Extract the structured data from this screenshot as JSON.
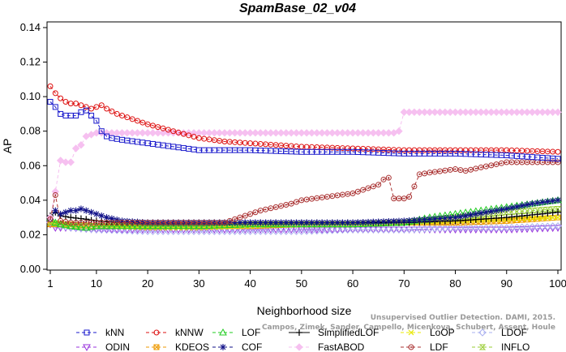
{
  "chart_data": {
    "type": "line",
    "title": "SpamBase_02_v04",
    "xlabel": "Neighborhood size",
    "ylabel": "AP",
    "xlim": [
      1,
      100
    ],
    "ylim": [
      0.0,
      0.14
    ],
    "xticks": [
      1,
      10,
      20,
      30,
      40,
      50,
      60,
      70,
      80,
      90,
      100
    ],
    "yticks": [
      0.0,
      0.02,
      0.04,
      0.06,
      0.08,
      0.1,
      0.12,
      0.14
    ],
    "ytick_labels": [
      "0.00",
      "0.02",
      "0.04",
      "0.06",
      "0.08",
      "0.10",
      "0.12",
      "0.14"
    ],
    "legend_position": "bottom",
    "credit": "Campos, Zimek, Sander, Campello, Micenkova, Schubert, Assent, Houle: Unsupervised Outlier Detection. DAMI, 2015.",
    "credit_visible": "Unsupervised Outlier Detection. DAMI, 2015.",
    "credit_line2": "Campos, Zimek, Sander, Campello, Micenkova, Schubert, Assent, Houle",
    "series": [
      {
        "name": "kNN",
        "color": "#1a1acc",
        "marker": "square",
        "dash": "4,3",
        "values": [
          [
            1,
            0.097
          ],
          [
            2,
            0.094
          ],
          [
            3,
            0.09
          ],
          [
            4,
            0.089
          ],
          [
            5,
            0.089
          ],
          [
            6,
            0.089
          ],
          [
            7,
            0.091
          ],
          [
            8,
            0.092
          ],
          [
            9,
            0.089
          ],
          [
            10,
            0.086
          ],
          [
            11,
            0.08
          ],
          [
            12,
            0.077
          ],
          [
            13,
            0.076
          ],
          [
            15,
            0.075
          ],
          [
            20,
            0.073
          ],
          [
            25,
            0.071
          ],
          [
            30,
            0.069
          ],
          [
            40,
            0.069
          ],
          [
            50,
            0.068
          ],
          [
            60,
            0.068
          ],
          [
            70,
            0.067
          ],
          [
            80,
            0.067
          ],
          [
            90,
            0.066
          ],
          [
            100,
            0.064
          ]
        ]
      },
      {
        "name": "kNNW",
        "color": "#dd1111",
        "marker": "circle",
        "dash": "4,3",
        "values": [
          [
            1,
            0.106
          ],
          [
            2,
            0.102
          ],
          [
            3,
            0.099
          ],
          [
            4,
            0.097
          ],
          [
            5,
            0.096
          ],
          [
            6,
            0.096
          ],
          [
            7,
            0.095
          ],
          [
            8,
            0.094
          ],
          [
            9,
            0.093
          ],
          [
            10,
            0.094
          ],
          [
            11,
            0.095
          ],
          [
            12,
            0.093
          ],
          [
            14,
            0.09
          ],
          [
            16,
            0.088
          ],
          [
            18,
            0.086
          ],
          [
            20,
            0.084
          ],
          [
            25,
            0.08
          ],
          [
            30,
            0.076
          ],
          [
            35,
            0.074
          ],
          [
            40,
            0.073
          ],
          [
            50,
            0.071
          ],
          [
            60,
            0.07
          ],
          [
            70,
            0.069
          ],
          [
            80,
            0.069
          ],
          [
            90,
            0.069
          ],
          [
            100,
            0.068
          ]
        ]
      },
      {
        "name": "LOF",
        "color": "#22cc22",
        "marker": "triangle",
        "dash": "4,3",
        "values": [
          [
            1,
            0.03
          ],
          [
            2,
            0.027
          ],
          [
            3,
            0.026
          ],
          [
            5,
            0.025
          ],
          [
            8,
            0.024
          ],
          [
            10,
            0.025
          ],
          [
            20,
            0.025
          ],
          [
            30,
            0.025
          ],
          [
            40,
            0.026
          ],
          [
            50,
            0.026
          ],
          [
            60,
            0.026
          ],
          [
            70,
            0.027
          ],
          [
            75,
            0.03
          ],
          [
            80,
            0.032
          ],
          [
            85,
            0.034
          ],
          [
            90,
            0.036
          ],
          [
            95,
            0.038
          ],
          [
            100,
            0.04
          ]
        ]
      },
      {
        "name": "SimplifiedLOF",
        "color": "#000000",
        "marker": "plus",
        "dash": "",
        "values": [
          [
            1,
            0.031
          ],
          [
            2,
            0.033
          ],
          [
            3,
            0.031
          ],
          [
            5,
            0.03
          ],
          [
            8,
            0.029
          ],
          [
            10,
            0.028
          ],
          [
            15,
            0.027
          ],
          [
            20,
            0.027
          ],
          [
            30,
            0.027
          ],
          [
            40,
            0.027
          ],
          [
            50,
            0.027
          ],
          [
            60,
            0.027
          ],
          [
            70,
            0.027
          ],
          [
            80,
            0.028
          ],
          [
            90,
            0.03
          ],
          [
            100,
            0.033
          ]
        ]
      },
      {
        "name": "LoOP",
        "color": "#e8e800",
        "marker": "x",
        "dash": "4,3",
        "values": [
          [
            1,
            0.027
          ],
          [
            3,
            0.027
          ],
          [
            5,
            0.026
          ],
          [
            10,
            0.025
          ],
          [
            20,
            0.024
          ],
          [
            30,
            0.024
          ],
          [
            40,
            0.025
          ],
          [
            50,
            0.026
          ],
          [
            60,
            0.026
          ],
          [
            70,
            0.027
          ],
          [
            80,
            0.028
          ],
          [
            90,
            0.029
          ],
          [
            100,
            0.03
          ]
        ]
      },
      {
        "name": "LDOF",
        "color": "#aab0f0",
        "marker": "diamond",
        "dash": "4,3",
        "values": [
          [
            1,
            0.027
          ],
          [
            3,
            0.025
          ],
          [
            5,
            0.024
          ],
          [
            10,
            0.023
          ],
          [
            20,
            0.022
          ],
          [
            30,
            0.022
          ],
          [
            40,
            0.022
          ],
          [
            50,
            0.022
          ],
          [
            60,
            0.023
          ],
          [
            70,
            0.023
          ],
          [
            80,
            0.024
          ],
          [
            90,
            0.024
          ],
          [
            100,
            0.025
          ]
        ]
      },
      {
        "name": "ODIN",
        "color": "#9933dd",
        "marker": "triangle-down",
        "dash": "4,3",
        "values": [
          [
            1,
            0.026
          ],
          [
            2,
            0.024
          ],
          [
            5,
            0.024
          ],
          [
            10,
            0.023
          ],
          [
            20,
            0.023
          ],
          [
            30,
            0.023
          ],
          [
            40,
            0.023
          ],
          [
            50,
            0.023
          ],
          [
            60,
            0.023
          ],
          [
            70,
            0.023
          ],
          [
            80,
            0.023
          ],
          [
            90,
            0.023
          ],
          [
            100,
            0.024
          ]
        ]
      },
      {
        "name": "KDEOS",
        "color": "#ee9900",
        "marker": "boxed-x",
        "dash": "4,3",
        "values": [
          [
            1,
            0.026
          ],
          [
            5,
            0.026
          ],
          [
            10,
            0.025
          ],
          [
            20,
            0.025
          ],
          [
            30,
            0.025
          ],
          [
            40,
            0.025
          ],
          [
            50,
            0.026
          ],
          [
            60,
            0.026
          ],
          [
            70,
            0.027
          ],
          [
            80,
            0.027
          ],
          [
            90,
            0.028
          ],
          [
            100,
            0.03
          ]
        ]
      },
      {
        "name": "COF",
        "color": "#111188",
        "marker": "star",
        "dash": "4,3",
        "values": [
          [
            1,
            0.029
          ],
          [
            2,
            0.034
          ],
          [
            3,
            0.032
          ],
          [
            4,
            0.033
          ],
          [
            5,
            0.034
          ],
          [
            6,
            0.034
          ],
          [
            7,
            0.035
          ],
          [
            8,
            0.034
          ],
          [
            9,
            0.033
          ],
          [
            10,
            0.032
          ],
          [
            12,
            0.03
          ],
          [
            15,
            0.028
          ],
          [
            20,
            0.027
          ],
          [
            30,
            0.027
          ],
          [
            40,
            0.027
          ],
          [
            50,
            0.027
          ],
          [
            60,
            0.027
          ],
          [
            70,
            0.028
          ],
          [
            80,
            0.03
          ],
          [
            90,
            0.035
          ],
          [
            95,
            0.038
          ],
          [
            100,
            0.04
          ]
        ]
      },
      {
        "name": "FastABOD",
        "color": "#f6c0f0",
        "marker": "diamond-fill",
        "dash": "4,3",
        "values": [
          [
            1,
            0.03
          ],
          [
            2,
            0.045
          ],
          [
            3,
            0.063
          ],
          [
            4,
            0.062
          ],
          [
            5,
            0.062
          ],
          [
            6,
            0.07
          ],
          [
            7,
            0.072
          ],
          [
            8,
            0.077
          ],
          [
            9,
            0.078
          ],
          [
            10,
            0.079
          ],
          [
            12,
            0.079
          ],
          [
            15,
            0.079
          ],
          [
            20,
            0.079
          ],
          [
            30,
            0.079
          ],
          [
            40,
            0.079
          ],
          [
            50,
            0.079
          ],
          [
            60,
            0.079
          ],
          [
            68,
            0.079
          ],
          [
            69,
            0.08
          ],
          [
            70,
            0.091
          ],
          [
            80,
            0.091
          ],
          [
            90,
            0.091
          ],
          [
            100,
            0.091
          ]
        ]
      },
      {
        "name": "LDF",
        "color": "#aa3333",
        "marker": "circle-dot",
        "dash": "4,3",
        "values": [
          [
            1,
            0.029
          ],
          [
            2,
            0.043
          ],
          [
            3,
            0.028
          ],
          [
            5,
            0.027
          ],
          [
            10,
            0.027
          ],
          [
            20,
            0.027
          ],
          [
            30,
            0.027
          ],
          [
            35,
            0.027
          ],
          [
            38,
            0.03
          ],
          [
            40,
            0.032
          ],
          [
            42,
            0.034
          ],
          [
            45,
            0.036
          ],
          [
            48,
            0.038
          ],
          [
            50,
            0.04
          ],
          [
            55,
            0.042
          ],
          [
            60,
            0.044
          ],
          [
            63,
            0.047
          ],
          [
            65,
            0.049
          ],
          [
            66,
            0.052
          ],
          [
            67,
            0.053
          ],
          [
            68,
            0.041
          ],
          [
            70,
            0.041
          ],
          [
            71,
            0.042
          ],
          [
            72,
            0.048
          ],
          [
            73,
            0.055
          ],
          [
            75,
            0.056
          ],
          [
            80,
            0.058
          ],
          [
            82,
            0.057
          ],
          [
            85,
            0.059
          ],
          [
            90,
            0.062
          ],
          [
            95,
            0.062
          ],
          [
            100,
            0.062
          ]
        ]
      },
      {
        "name": "INFLO",
        "color": "#99cc33",
        "marker": "hourglass",
        "dash": "4,3",
        "values": [
          [
            1,
            0.027
          ],
          [
            3,
            0.026
          ],
          [
            5,
            0.025
          ],
          [
            10,
            0.025
          ],
          [
            20,
            0.025
          ],
          [
            30,
            0.025
          ],
          [
            40,
            0.026
          ],
          [
            50,
            0.026
          ],
          [
            60,
            0.026
          ],
          [
            70,
            0.027
          ],
          [
            80,
            0.03
          ],
          [
            90,
            0.033
          ],
          [
            100,
            0.035
          ]
        ]
      }
    ],
    "legend_order": [
      "kNN",
      "kNNW",
      "LOF",
      "SimplifiedLOF",
      "LoOP",
      "LDOF",
      "ODIN",
      "KDEOS",
      "COF",
      "FastABOD",
      "LDF",
      "INFLO"
    ]
  }
}
